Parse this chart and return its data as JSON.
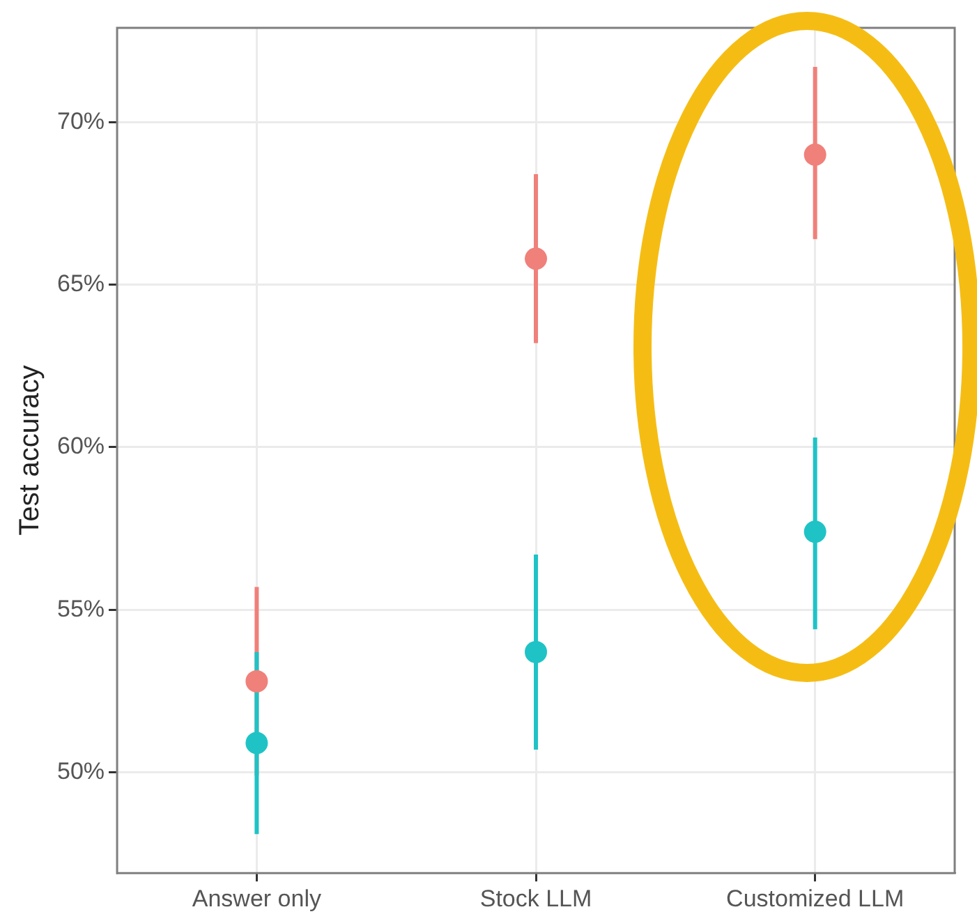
{
  "chart_data": {
    "type": "scatter",
    "ylabel": "Test accuracy",
    "categories": [
      "Answer only",
      "Stock LLM",
      "Customized LLM"
    ],
    "series": [
      {
        "color": "#f0807a",
        "values": [
          52.8,
          65.8,
          69.0
        ],
        "errors": [
          [
            49.9,
            55.7
          ],
          [
            63.2,
            68.4
          ],
          [
            66.4,
            71.7
          ]
        ]
      },
      {
        "color": "#1fc3c6",
        "values": [
          50.9,
          53.7,
          57.4
        ],
        "errors": [
          [
            48.1,
            53.7
          ],
          [
            50.7,
            56.7
          ],
          [
            54.4,
            60.3
          ]
        ]
      }
    ],
    "ylim": [
      46.9,
      72.9
    ],
    "yticks": [
      {
        "value": 50,
        "label": "50%"
      },
      {
        "value": 55,
        "label": "55%"
      },
      {
        "value": 60,
        "label": "60%"
      },
      {
        "value": 65,
        "label": "65%"
      },
      {
        "value": 70,
        "label": "70%"
      }
    ],
    "grid": true,
    "legend": false,
    "marker": "circle"
  }
}
